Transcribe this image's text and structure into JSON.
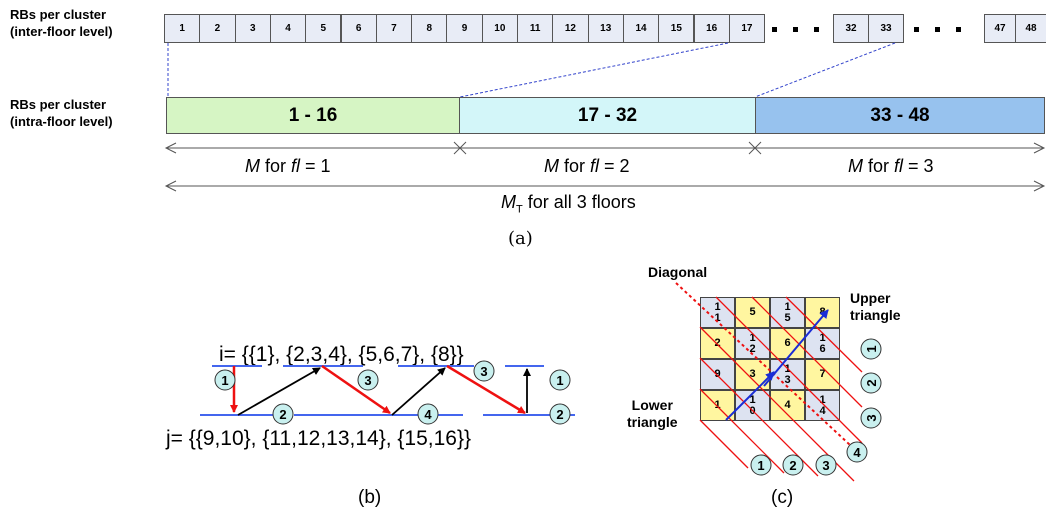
{
  "part_a": {
    "inter_label_1": "RBs per cluster",
    "inter_label_2": "(inter-floor level)",
    "intra_label_1": "RBs per cluster",
    "intra_label_2": "(intra-floor level)",
    "cells_left": [
      "1",
      "2",
      "3",
      "4",
      "5",
      "6",
      "7",
      "8",
      "9",
      "10",
      "11",
      "12",
      "13",
      "14",
      "15",
      "16",
      "17"
    ],
    "cells_mid": [
      "32",
      "33"
    ],
    "cells_right": [
      "47",
      "48"
    ],
    "bands": [
      {
        "label": "1 - 16",
        "color": "#d6f5c4"
      },
      {
        "label": "17 - 32",
        "color": "#d3f6f9"
      },
      {
        "label": "33 - 48",
        "color": "#97c2ee"
      }
    ],
    "m_italic": "M",
    "m_for": " for ",
    "fl_italic": "fl",
    "m_labels": [
      " = 1",
      " = 2",
      " = 3"
    ],
    "mt_main": "M",
    "mt_sub": "T",
    "mt_text": " for all 3 floors",
    "caption": "(a)"
  },
  "part_b": {
    "i_line": "i= {{1},  {2,3,4},  {5,6,7},   {8}}",
    "j_line": "j= {{9,10}, {11,12,13,14}, {15,16}}",
    "circles": [
      "1",
      "2",
      "3",
      "4",
      "3",
      "1",
      "2"
    ],
    "caption": "(b)"
  },
  "part_c": {
    "diagonal_label": "Diagonal",
    "upper_label_1": "Upper",
    "upper_label_2": "triangle",
    "lower_label_1": "Lower",
    "lower_label_2": "triangle",
    "grid": [
      [
        "1\n1",
        "5",
        "1\n5",
        "8"
      ],
      [
        "2",
        "1\n2",
        "6",
        "1\n6"
      ],
      [
        "9",
        "3",
        "1\n3",
        "7"
      ],
      [
        "1",
        "1\n0",
        "4",
        "1\n4"
      ]
    ],
    "right_circles": [
      "1",
      "2",
      "3"
    ],
    "bottom_circles": [
      "1",
      "2",
      "3",
      "4"
    ],
    "caption": "(c)"
  }
}
